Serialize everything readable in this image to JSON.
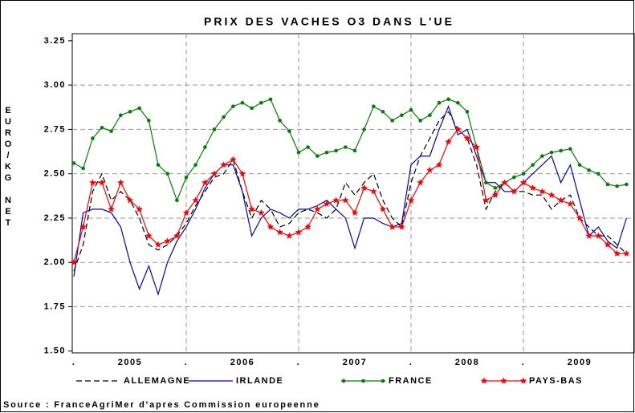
{
  "chart_data": {
    "type": "line",
    "title": "PRIX DES VACHES O3 DANS L'UE",
    "ylabel": "EURO/KG NET",
    "source": "Source : FranceAgriMer d'apres Commission europeenne",
    "x": [
      2005,
      2005.083,
      2005.167,
      2005.25,
      2005.333,
      2005.417,
      2005.5,
      2005.583,
      2005.667,
      2005.75,
      2005.833,
      2005.917,
      2006,
      2006.083,
      2006.167,
      2006.25,
      2006.333,
      2006.417,
      2006.5,
      2006.583,
      2006.667,
      2006.75,
      2006.833,
      2006.917,
      2007,
      2007.083,
      2007.167,
      2007.25,
      2007.333,
      2007.417,
      2007.5,
      2007.583,
      2007.667,
      2007.75,
      2007.833,
      2007.917,
      2008,
      2008.083,
      2008.167,
      2008.25,
      2008.333,
      2008.417,
      2008.5,
      2008.583,
      2008.667,
      2008.75,
      2008.833,
      2008.917,
      2009,
      2009.083,
      2009.167,
      2009.25,
      2009.333,
      2009.417,
      2009.5,
      2009.583,
      2009.667,
      2009.75,
      2009.833,
      2009.917
    ],
    "xlim": [
      2005,
      2010
    ],
    "xticks": [
      {
        "value": 2005.5,
        "label": "2005"
      },
      {
        "value": 2006.5,
        "label": "2006"
      },
      {
        "value": 2007.5,
        "label": "2007"
      },
      {
        "value": 2008.5,
        "label": "2008"
      },
      {
        "value": 2009.5,
        "label": "2009"
      }
    ],
    "xminor": [
      {
        "value": 2005,
        "label": "."
      },
      {
        "value": 2006,
        "label": "."
      },
      {
        "value": 2007,
        "label": "."
      },
      {
        "value": 2008,
        "label": "."
      },
      {
        "value": 2009,
        "label": "."
      }
    ],
    "ylim": [
      1.49,
      3.29
    ],
    "yticks": [
      {
        "value": 1.5,
        "label": "1.50"
      },
      1.75,
      {
        "value": 2,
        "label": "2.00"
      },
      2.25,
      {
        "value": 2.5,
        "label": "2.50"
      },
      2.75,
      {
        "value": 3,
        "label": "3.00"
      },
      3.25
    ],
    "grid": true,
    "series": [
      {
        "name": "ALLEMAGNE",
        "color": "#000000",
        "dash": true,
        "marker": "none",
        "values": [
          1.95,
          2.1,
          2.4,
          2.5,
          2.35,
          2.4,
          2.35,
          2.25,
          2.1,
          2.07,
          2.1,
          2.15,
          2.22,
          2.32,
          2.4,
          2.48,
          2.5,
          2.58,
          2.4,
          2.25,
          2.35,
          2.3,
          2.2,
          2.22,
          2.28,
          2.3,
          2.28,
          2.25,
          2.3,
          2.45,
          2.38,
          2.45,
          2.5,
          2.35,
          2.25,
          2.2,
          2.45,
          2.6,
          2.7,
          2.8,
          2.85,
          2.75,
          2.7,
          2.55,
          2.3,
          2.4,
          2.45,
          2.4,
          2.4,
          2.38,
          2.38,
          2.3,
          2.35,
          2.38,
          2.25,
          2.2,
          2.15,
          2.15,
          2.1,
          2.05
        ]
      },
      {
        "name": "IRLANDE",
        "color": "#0000cc",
        "dash": false,
        "marker": "none",
        "values": [
          1.92,
          2.28,
          2.3,
          2.3,
          2.28,
          2.2,
          2.0,
          1.85,
          1.98,
          1.82,
          2.0,
          2.12,
          2.2,
          2.3,
          2.42,
          2.5,
          2.55,
          2.55,
          2.4,
          2.15,
          2.25,
          2.3,
          2.28,
          2.25,
          2.3,
          2.3,
          2.32,
          2.35,
          2.3,
          2.25,
          2.08,
          2.25,
          2.25,
          2.22,
          2.2,
          2.22,
          2.55,
          2.6,
          2.6,
          2.75,
          2.88,
          2.72,
          2.75,
          2.6,
          2.45,
          2.45,
          2.4,
          2.4,
          2.45,
          2.5,
          2.55,
          2.6,
          2.45,
          2.55,
          2.35,
          2.15,
          2.2,
          2.12,
          2.08,
          2.25
        ]
      },
      {
        "name": "FRANCE",
        "color": "#008000",
        "dash": false,
        "marker": "circle",
        "values": [
          2.56,
          2.53,
          2.7,
          2.76,
          2.74,
          2.83,
          2.85,
          2.87,
          2.8,
          2.55,
          2.5,
          2.35,
          2.48,
          2.55,
          2.65,
          2.75,
          2.82,
          2.88,
          2.9,
          2.87,
          2.9,
          2.92,
          2.8,
          2.74,
          2.62,
          2.65,
          2.6,
          2.62,
          2.63,
          2.65,
          2.63,
          2.75,
          2.88,
          2.85,
          2.8,
          2.83,
          2.86,
          2.8,
          2.83,
          2.9,
          2.92,
          2.9,
          2.85,
          2.65,
          2.45,
          2.42,
          2.45,
          2.48,
          2.5,
          2.55,
          2.6,
          2.62,
          2.63,
          2.64,
          2.55,
          2.52,
          2.5,
          2.44,
          2.43,
          2.44
        ]
      },
      {
        "name": "PAYS-BAS",
        "color": "#ff0000",
        "dash": false,
        "marker": "star",
        "values": [
          2.0,
          2.2,
          2.45,
          2.45,
          2.3,
          2.45,
          2.35,
          2.3,
          2.15,
          2.1,
          2.12,
          2.15,
          2.28,
          2.35,
          2.45,
          2.5,
          2.55,
          2.58,
          2.5,
          2.3,
          2.28,
          2.2,
          2.17,
          2.15,
          2.17,
          2.2,
          2.3,
          2.33,
          2.35,
          2.35,
          2.28,
          2.42,
          2.4,
          2.3,
          2.2,
          2.2,
          2.35,
          2.45,
          2.52,
          2.55,
          2.68,
          2.75,
          2.7,
          2.65,
          2.35,
          2.38,
          2.45,
          2.4,
          2.45,
          2.42,
          2.4,
          2.38,
          2.35,
          2.33,
          2.25,
          2.15,
          2.15,
          2.1,
          2.05,
          2.05
        ]
      }
    ]
  }
}
